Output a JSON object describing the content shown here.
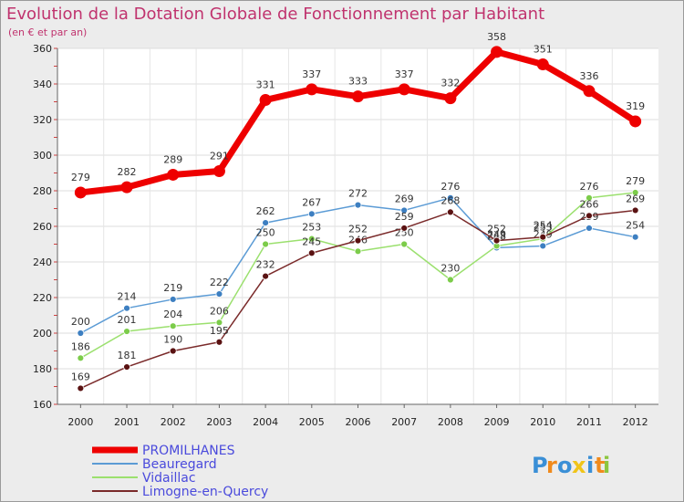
{
  "chart_data": {
    "type": "line",
    "title": "Evolution de la Dotation Globale de Fonctionnement par Habitant",
    "subtitle": "(en € et par an)",
    "xlabel": "",
    "ylabel": "",
    "x": [
      "2000",
      "2001",
      "2002",
      "2003",
      "2004",
      "2005",
      "2006",
      "2007",
      "2008",
      "2009",
      "2010",
      "2011",
      "2012"
    ],
    "ylim": [
      160,
      360
    ],
    "yticks": [
      160,
      180,
      200,
      220,
      240,
      260,
      280,
      300,
      320,
      340,
      360
    ],
    "grid": true,
    "legend_position": "bottom-left",
    "series": [
      {
        "name": "PROMILHANES",
        "color": "#ee0000",
        "emphasis": true,
        "values": [
          279,
          282,
          289,
          291,
          331,
          337,
          333,
          337,
          332,
          358,
          351,
          336,
          319
        ]
      },
      {
        "name": "Beauregard",
        "color": "#5b9bd5",
        "marker": "#3d7fc1",
        "values": [
          200,
          214,
          219,
          222,
          262,
          267,
          272,
          269,
          276,
          248,
          249,
          259,
          254
        ]
      },
      {
        "name": "Vidaillac",
        "color": "#9be06e",
        "marker": "#7ccc4a",
        "values": [
          186,
          201,
          204,
          206,
          250,
          253,
          246,
          250,
          230,
          249,
          253,
          276,
          279
        ]
      },
      {
        "name": "Limogne-en-Quercy",
        "color": "#7a2a2a",
        "marker": "#5a1212",
        "values": [
          169,
          181,
          190,
          195,
          232,
          245,
          252,
          259,
          268,
          252,
          254,
          266,
          269
        ]
      }
    ]
  },
  "brand": {
    "letters": [
      "P",
      "r",
      "o",
      "x",
      "i",
      "t",
      "i"
    ],
    "colors": [
      "#3a8fd6",
      "#f08a1c",
      "#3a8fd6",
      "#f0c419",
      "#3a8fd6",
      "#f08a1c",
      "#8cc63f"
    ]
  }
}
